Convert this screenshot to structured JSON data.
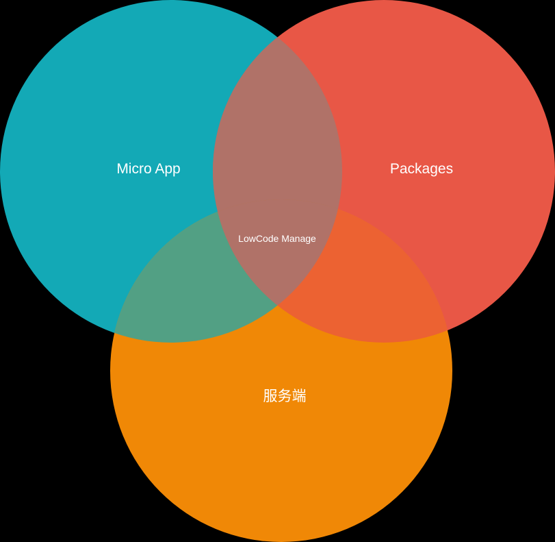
{
  "diagram": {
    "type": "venn",
    "sets": [
      {
        "id": "micro-app",
        "label": "Micro App",
        "color": "#13A9B6"
      },
      {
        "id": "packages",
        "label": "Packages",
        "color": "#E85746"
      },
      {
        "id": "server",
        "label": "服务端",
        "color": "#F08806"
      }
    ],
    "intersection_label": "LowCode Manage",
    "overlap_colors": {
      "micro-app_packages": "#B07268",
      "micro-app_server": "#52A084",
      "packages_server": "#EC6232",
      "all": "#B07268"
    },
    "background": "#000000"
  }
}
